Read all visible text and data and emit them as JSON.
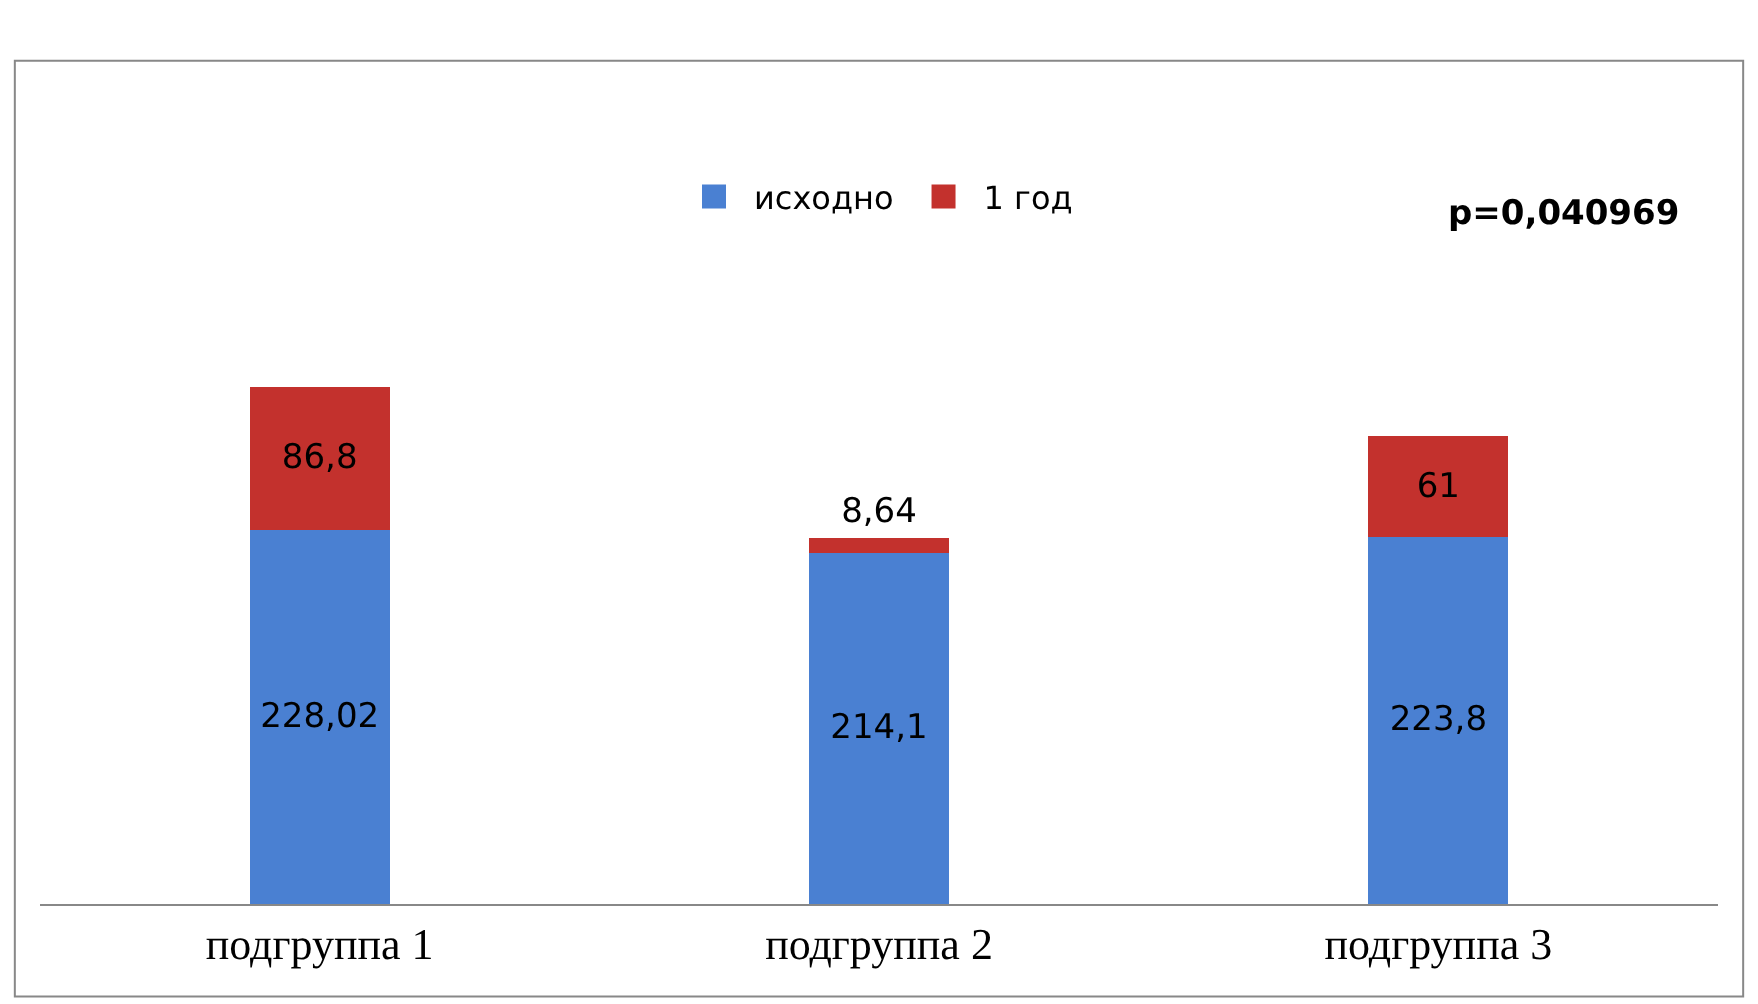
{
  "chart_data": {
    "type": "bar",
    "stacked": true,
    "categories": [
      "подгруппа 1",
      "подгруппа 2",
      "подгруппа 3"
    ],
    "series": [
      {
        "name": "исходно",
        "color": "#4a80d2",
        "values": [
          228.02,
          214.1,
          223.8
        ],
        "value_labels": [
          "228,02",
          "214,1",
          "223,8"
        ]
      },
      {
        "name": "1 год",
        "color": "#c3312d",
        "values": [
          86.8,
          8.64,
          61
        ],
        "value_labels": [
          "86,8",
          "8,64",
          "61"
        ]
      }
    ],
    "tick_labels": "x",
    "legend": "top",
    "annotations": [
      "p=0,040969"
    ]
  }
}
